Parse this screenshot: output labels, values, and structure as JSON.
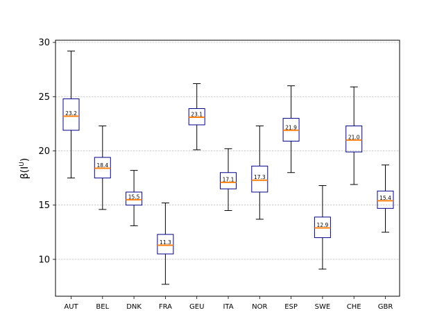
{
  "chart_data": {
    "type": "box",
    "ylabel": "β(I^U)",
    "ylabel_main": "β(I",
    "ylabel_sup": "U",
    "ylabel_close": ")",
    "ylim": [
      6.6,
      30.2
    ],
    "yticks": [
      10,
      15,
      20,
      25,
      30
    ],
    "grid": "y-dashed",
    "categories": [
      "AUT",
      "BEL",
      "DNK",
      "FRA",
      "GEU",
      "ITA",
      "NOR",
      "ESP",
      "SWE",
      "CHE",
      "GBR"
    ],
    "boxes": [
      {
        "category": "AUT",
        "whisker_low": 17.5,
        "q1": 21.9,
        "median": 23.2,
        "q3": 24.8,
        "whisker_high": 29.2,
        "median_label": "23.2"
      },
      {
        "category": "BEL",
        "whisker_low": 14.6,
        "q1": 17.5,
        "median": 18.4,
        "q3": 19.4,
        "whisker_high": 22.3,
        "median_label": "18.4"
      },
      {
        "category": "DNK",
        "whisker_low": 13.1,
        "q1": 15.0,
        "median": 15.5,
        "q3": 16.2,
        "whisker_high": 18.2,
        "median_label": "15.5"
      },
      {
        "category": "FRA",
        "whisker_low": 7.7,
        "q1": 10.5,
        "median": 11.3,
        "q3": 12.3,
        "whisker_high": 15.2,
        "median_label": "11.3"
      },
      {
        "category": "GEU",
        "whisker_low": 20.1,
        "q1": 22.4,
        "median": 23.1,
        "q3": 23.9,
        "whisker_high": 26.2,
        "median_label": "23.1"
      },
      {
        "category": "ITA",
        "whisker_low": 14.5,
        "q1": 16.5,
        "median": 17.1,
        "q3": 18.0,
        "whisker_high": 20.2,
        "median_label": "17.1"
      },
      {
        "category": "NOR",
        "whisker_low": 13.7,
        "q1": 16.2,
        "median": 17.3,
        "q3": 18.6,
        "whisker_high": 22.3,
        "median_label": "17.3"
      },
      {
        "category": "ESP",
        "whisker_low": 18.0,
        "q1": 20.9,
        "median": 21.9,
        "q3": 23.0,
        "whisker_high": 26.0,
        "median_label": "21.9"
      },
      {
        "category": "SWE",
        "whisker_low": 9.1,
        "q1": 12.0,
        "median": 12.9,
        "q3": 13.9,
        "whisker_high": 16.8,
        "median_label": "12.9"
      },
      {
        "category": "CHE",
        "whisker_low": 16.9,
        "q1": 19.9,
        "median": 21.0,
        "q3": 22.3,
        "whisker_high": 25.9,
        "median_label": "21.0"
      },
      {
        "category": "GBR",
        "whisker_low": 12.5,
        "q1": 14.7,
        "median": 15.4,
        "q3": 16.3,
        "whisker_high": 18.7,
        "median_label": "15.4"
      }
    ],
    "colors": {
      "box": "#00008b",
      "median": "#ff7f0e",
      "whisker": "#000000",
      "grid": "#b0b0b0"
    }
  }
}
